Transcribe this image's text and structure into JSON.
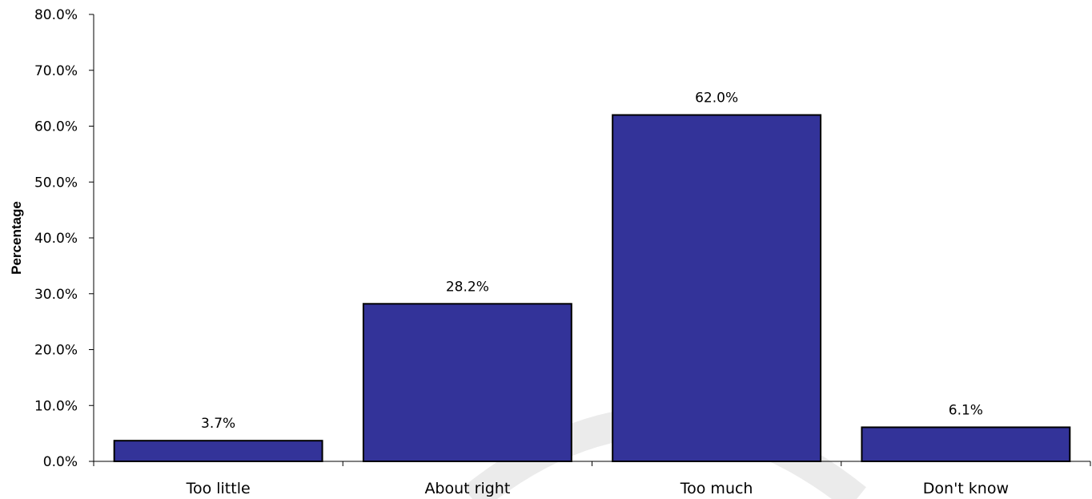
{
  "chart_data": {
    "type": "bar",
    "categories": [
      "Too little",
      "About right",
      "Too much",
      "Don't know"
    ],
    "values": [
      3.7,
      28.2,
      62.0,
      6.1
    ],
    "data_labels": [
      "3.7%",
      "28.2%",
      "62.0%",
      "6.1%"
    ],
    "title": "",
    "xlabel": "",
    "ylabel": "Percentage",
    "ylim": [
      0,
      80
    ],
    "yticks": [
      0,
      10,
      20,
      30,
      40,
      50,
      60,
      70,
      80
    ],
    "ytick_labels": [
      "0.0%",
      "10.0%",
      "20.0%",
      "30.0%",
      "40.0%",
      "50.0%",
      "60.0%",
      "70.0%",
      "80.0%"
    ],
    "grid": false,
    "legend": "none",
    "bar_color": "#333399",
    "bar_outline_color": "#000000"
  }
}
